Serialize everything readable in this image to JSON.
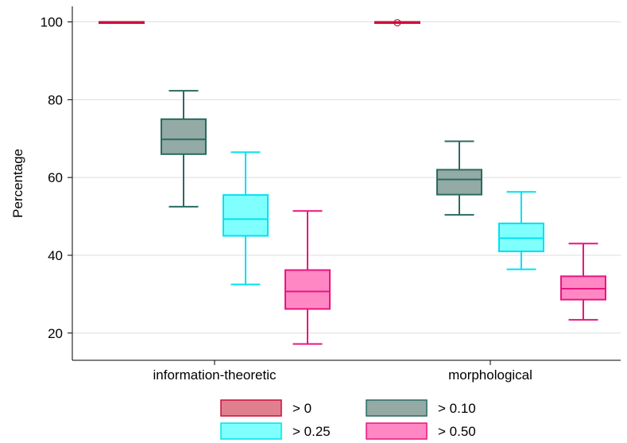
{
  "chart_data": {
    "type": "box",
    "ylabel": "Percentage",
    "ylim": [
      13,
      104
    ],
    "yticks": [
      20,
      40,
      60,
      80,
      100
    ],
    "grid": true,
    "legend_position": "bottom",
    "categories": [
      "information-theoretic",
      "morphological"
    ],
    "series": [
      {
        "name": "> 0",
        "color": "#e0808f",
        "stroke": "#c8103c",
        "boxes": [
          {
            "min": 100,
            "q1": 100,
            "median": 100,
            "q3": 100,
            "max": 100,
            "outliers": []
          },
          {
            "min": 100,
            "q1": 100,
            "median": 100,
            "q3": 100,
            "max": 100,
            "outliers": [
              99.8
            ]
          }
        ]
      },
      {
        "name": "> 0.10",
        "color": "#93aaa5",
        "stroke": "#2b6a62",
        "boxes": [
          {
            "min": 52.5,
            "q1": 66.0,
            "median": 69.8,
            "q3": 75.0,
            "max": 82.3,
            "outliers": []
          },
          {
            "min": 50.4,
            "q1": 55.6,
            "median": 59.5,
            "q3": 62.0,
            "max": 69.3,
            "outliers": []
          }
        ]
      },
      {
        "name": "> 0.25",
        "color": "#80ffff",
        "stroke": "#00e0f0",
        "boxes": [
          {
            "min": 32.5,
            "q1": 45.0,
            "median": 49.3,
            "q3": 55.5,
            "max": 66.5,
            "outliers": []
          },
          {
            "min": 36.4,
            "q1": 41.0,
            "median": 44.4,
            "q3": 48.2,
            "max": 56.3,
            "outliers": []
          }
        ]
      },
      {
        "name": "> 0.50",
        "color": "#ff88c4",
        "stroke": "#e8157e",
        "boxes": [
          {
            "min": 17.2,
            "q1": 26.2,
            "median": 30.7,
            "q3": 36.2,
            "max": 51.4,
            "outliers": []
          },
          {
            "min": 23.4,
            "q1": 28.6,
            "median": 31.4,
            "q3": 34.6,
            "max": 43.0,
            "outliers": []
          }
        ]
      }
    ]
  }
}
